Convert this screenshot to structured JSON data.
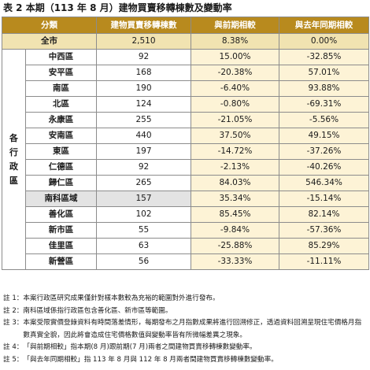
{
  "title": "表 2 本期（113 年 8 月）建物買賣移轉棟數及變動率",
  "headers": {
    "district": "分類",
    "count": "建物買賣移轉棟數",
    "prev_period": "與前期相較",
    "same_period_last_year": "與去年同期相較"
  },
  "total_row": {
    "name": "全市",
    "count": "2,510",
    "prev": "8.38%",
    "yoy": "0.00%"
  },
  "region_label": "各\n行\n政\n區",
  "rows": [
    {
      "name": "中西區",
      "count": "92",
      "prev": "15.00%",
      "yoy": "-32.85%"
    },
    {
      "name": "安平區",
      "count": "168",
      "prev": "-20.38%",
      "yoy": "57.01%"
    },
    {
      "name": "南區",
      "count": "190",
      "prev": "-6.40%",
      "yoy": "93.88%"
    },
    {
      "name": "北區",
      "count": "124",
      "prev": "-0.80%",
      "yoy": "-69.31%"
    },
    {
      "name": "永康區",
      "count": "255",
      "prev": "-21.05%",
      "yoy": "-5.56%"
    },
    {
      "name": "安南區",
      "count": "440",
      "prev": "37.50%",
      "yoy": "49.15%"
    },
    {
      "name": "東區",
      "count": "197",
      "prev": "-14.72%",
      "yoy": "-37.26%"
    },
    {
      "name": "仁德區",
      "count": "92",
      "prev": "-2.13%",
      "yoy": "-40.26%"
    },
    {
      "name": "歸仁區",
      "count": "265",
      "prev": "84.03%",
      "yoy": "546.34%"
    },
    {
      "name": "南科區域",
      "count": "157",
      "prev": "35.34%",
      "yoy": "-15.14%",
      "highlight": true
    },
    {
      "name": "善化區",
      "count": "102",
      "prev": "85.45%",
      "yoy": "82.14%"
    },
    {
      "name": "新市區",
      "count": "55",
      "prev": "-9.84%",
      "yoy": "-57.36%"
    },
    {
      "name": "佳里區",
      "count": "63",
      "prev": "-25.88%",
      "yoy": "85.29%"
    },
    {
      "name": "新營區",
      "count": "56",
      "prev": "-33.33%",
      "yoy": "-11.11%"
    }
  ],
  "notes": [
    {
      "label": "註 1：",
      "text": "本案行政區研究成果僅針對樣本數較為充裕的範圍對外進行發布。"
    },
    {
      "label": "註 2：",
      "text": "南科區域係指行政區包含善化區、新市區等範圍。"
    },
    {
      "label": "註 3：",
      "text": "本案受限實價登錄資料有時間落差情形，每期發布之月指數成果將進行回溯修正，透過資料回溯呈現住宅價格月指數真實全貌，因此將會造成住宅價格數值與變動率皆有所微幅差異之現象。"
    },
    {
      "label": "註 4：",
      "text": "「與前期相較」指本期(8 月)跟前期(7 月)兩者之間建物買賣移轉棟數變動率。"
    },
    {
      "label": "註 5：",
      "text": "「與去年同期相較」指 113 年 8 月與 112 年 8 月兩者間建物買賣移轉棟數變動率。"
    }
  ]
}
